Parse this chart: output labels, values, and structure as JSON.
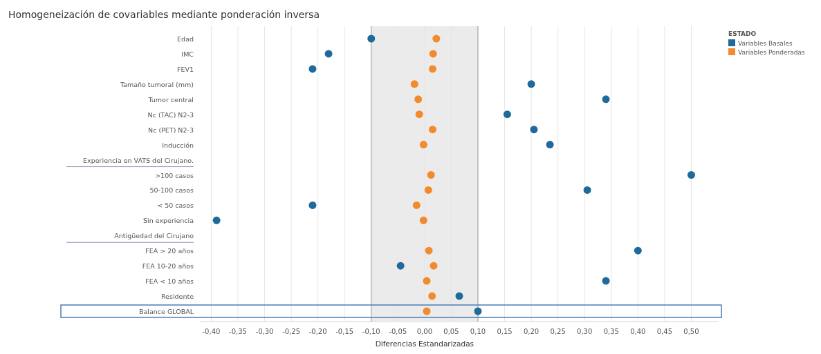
{
  "chart_data": {
    "type": "scatter",
    "title": "Homogeneización de covariables mediante ponderación inversa",
    "xlabel": "Diferencias Estandarizadas",
    "legend_title": "ESTADO",
    "orientation": "horizontal",
    "marker": "circle",
    "grid": "x",
    "legend": "top right",
    "categories": [
      "Edad",
      "IMC",
      "FEV1",
      "Tamaño tumoral (mm)",
      "Tumor central",
      "Nc (TAC) N2-3",
      "Nc (PET) N2-3",
      "Inducción",
      "Experiencia en VATS del Cirujano.",
      ">100 casos",
      "50-100 casos",
      "< 50 casos",
      "Sin experiencia",
      "Antigüedad del Cirujano",
      "FEA > 20 años",
      "FEA 10-20 años",
      "FEA < 10 años",
      "Residente",
      "Balance GLOBAL"
    ],
    "series": [
      {
        "name": "Variables Basales",
        "color": "#1f6a9a",
        "values": [
          -0.1,
          -0.18,
          -0.21,
          0.2,
          0.34,
          0.155,
          0.205,
          0.235,
          null,
          0.5,
          0.305,
          -0.21,
          -0.39,
          null,
          0.4,
          -0.045,
          0.34,
          0.065,
          0.1
        ]
      },
      {
        "name": "Variables Ponderadas",
        "color": "#f28a2e",
        "values": [
          0.022,
          0.016,
          0.015,
          -0.019,
          -0.012,
          -0.01,
          0.015,
          -0.002,
          null,
          0.012,
          0.007,
          -0.015,
          -0.002,
          null,
          0.008,
          0.017,
          0.004,
          0.014,
          0.004
        ]
      }
    ],
    "xlim": [
      -0.42,
      0.55
    ],
    "xticks": [
      {
        "value": -0.4,
        "label": "-0,40"
      },
      {
        "value": -0.35,
        "label": "-0,35"
      },
      {
        "value": -0.3,
        "label": "-0,30"
      },
      {
        "value": -0.25,
        "label": "-0,25"
      },
      {
        "value": -0.2,
        "label": "-0,20"
      },
      {
        "value": -0.15,
        "label": "-0,15"
      },
      {
        "value": -0.1,
        "label": "-0,10"
      },
      {
        "value": -0.05,
        "label": "-0,05"
      },
      {
        "value": 0,
        "label": "0,00"
      },
      {
        "value": 0.05,
        "label": "0,05"
      },
      {
        "value": 0.1,
        "label": "0,10"
      },
      {
        "value": 0.15,
        "label": "0,15"
      },
      {
        "value": 0.2,
        "label": "0,20"
      },
      {
        "value": 0.25,
        "label": "0,25"
      },
      {
        "value": 0.3,
        "label": "0,30"
      },
      {
        "value": 0.35,
        "label": "0,35"
      },
      {
        "value": 0.4,
        "label": "0,40"
      },
      {
        "value": 0.45,
        "label": "0,45"
      },
      {
        "value": 0.5,
        "label": "0,50"
      }
    ],
    "bands": [
      {
        "axis": "x",
        "from": -0.1,
        "to": 0.1,
        "color": "#ebebeb"
      }
    ]
  }
}
